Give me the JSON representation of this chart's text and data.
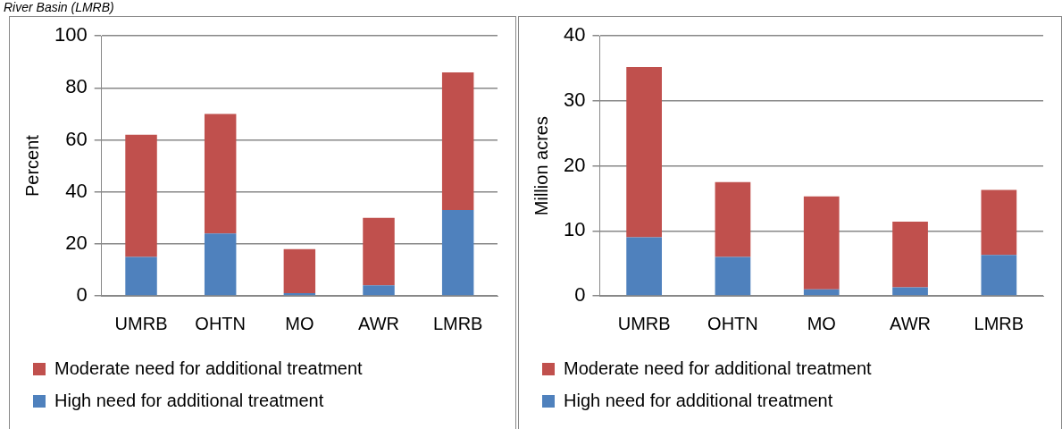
{
  "chart_data": [
    {
      "type": "bar",
      "stacked": true,
      "annotations": [
        "River Basin (LMRB)"
      ],
      "ylabel": "Percent",
      "categories": [
        "UMRB",
        "OHTN",
        "MO",
        "AWR",
        "LMRB"
      ],
      "ylim": [
        0,
        100
      ],
      "yticks": [
        0,
        20,
        40,
        60,
        80,
        100
      ],
      "grid": "y",
      "legend": "bottom",
      "series": [
        {
          "name": "High need for additional treatment",
          "color": "#4f81bd",
          "values": [
            15,
            24,
            1,
            4,
            33
          ]
        },
        {
          "name": "Moderate need for additional treatment",
          "color": "#c0504d",
          "values": [
            47,
            46,
            17,
            26,
            53
          ]
        }
      ]
    },
    {
      "type": "bar",
      "stacked": true,
      "ylabel": "Million acres",
      "categories": [
        "UMRB",
        "OHTN",
        "MO",
        "AWR",
        "LMRB"
      ],
      "ylim": [
        0,
        40
      ],
      "yticks": [
        0,
        10,
        20,
        30,
        40
      ],
      "grid": "y",
      "legend": "bottom",
      "series": [
        {
          "name": "High need for additional treatment",
          "color": "#4f81bd",
          "values": [
            9,
            6,
            1,
            1.3,
            6.3
          ]
        },
        {
          "name": "Moderate need for additional treatment",
          "color": "#c0504d",
          "values": [
            26.2,
            11.5,
            14.3,
            10.1,
            10.0
          ]
        }
      ]
    }
  ]
}
